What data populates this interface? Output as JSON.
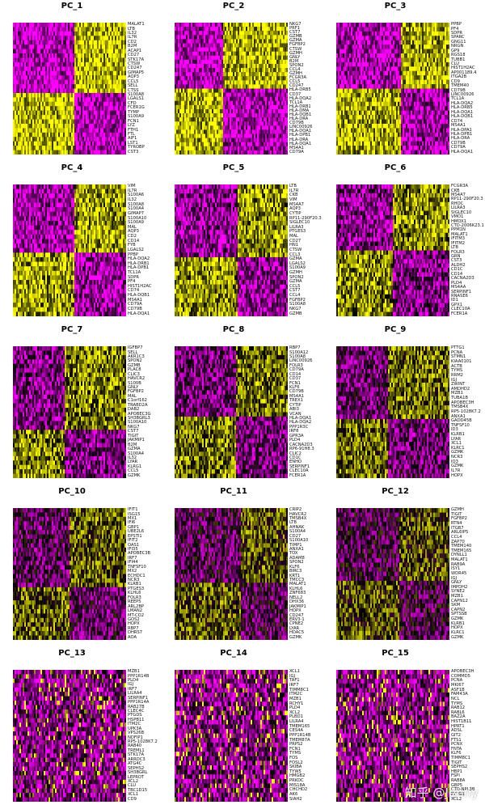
{
  "chart_data": [
    {
      "type": "heatmap",
      "title": "PC_1",
      "top": [
        "MALAT1",
        "LTB",
        "IL32",
        "IL7R",
        "CD2",
        "B2M",
        "ACAP1",
        "CD27",
        "STK17A",
        "CTSW",
        "CD247",
        "GIMAP5",
        "AQP3",
        "CCL5",
        "SELL",
        "CTSS"
      ],
      "bottom": [
        "S100A8",
        "LGALS1",
        "CFD",
        "FCER1G",
        "TYMP",
        "S100A9",
        "FCN1",
        "LYZ",
        "FTH1",
        "FTL",
        "AIF1",
        "LST1",
        "TYROBP",
        "CST3"
      ]
    },
    {
      "type": "heatmap",
      "title": "PC_2",
      "top": [
        "NKG7",
        "PRF1",
        "CST7",
        "GZMB",
        "GZMA",
        "FGFBP2",
        "CTSW",
        "GZMH",
        "GNLY",
        "B2M",
        "SPON2",
        "CCL4",
        "GZMH",
        "FCGR3A",
        "CCL5",
        "CD247"
      ],
      "bottom": [
        "HLA-DRB5",
        "CD37",
        "HLA-DQA2",
        "TCL1A",
        "HLA-DRB1",
        "HLA-DMA",
        "HLA-DQB1",
        "HLA-DRA",
        "CD79B",
        "LINC00926",
        "HLA-DQA1",
        "HLA-DPB1",
        "HLA-DRA",
        "HLA-DQA1",
        "MS4A1",
        "CD79A"
      ]
    },
    {
      "type": "heatmap",
      "title": "PC_3",
      "top": [
        "PPBP",
        "PF4",
        "SDPR",
        "SPARC",
        "GNG11",
        "NRGN",
        "GP9",
        "RGS18",
        "TUBB1",
        "CLU",
        "HIST1H2AC",
        "AP001189.4",
        "ITGA2B",
        "CD9",
        "TMEM40"
      ],
      "bottom": [
        "CD79B",
        "LINC00926",
        "TCL1A",
        "HLA-DQA2",
        "HLA-DRB5",
        "HLA-DQA1",
        "HLA-DQB1",
        "CD74",
        "MS4A1",
        "HLA-DPA1",
        "HLA-DPB1",
        "HLA-DRA",
        "CD79B",
        "CD79A",
        "HLA-DQA1"
      ]
    },
    {
      "type": "heatmap",
      "title": "PC_4",
      "top": [
        "VIM",
        "IL7R",
        "S100A6",
        "IL32",
        "S100A8",
        "S100A4",
        "GIMAP7",
        "S100A10",
        "S100A9",
        "MAL",
        "AQP3",
        "CD2",
        "CD14",
        "FYB",
        "LGALS2"
      ],
      "bottom": [
        "PPBP",
        "HLA-DQA2",
        "HLA-DRB1",
        "HLA-DPB1",
        "TCL1A",
        "SDPR",
        "PF4",
        "HIST1H2AC",
        "CD74",
        "HLA-DQB1",
        "MS4A1",
        "CD79A",
        "CD79B",
        "HLA-DQA1"
      ]
    },
    {
      "type": "heatmap",
      "title": "PC_5",
      "top": [
        "LTB",
        "IL7R",
        "CKB",
        "VIM",
        "MS4A7",
        "AQP3",
        "CYTIP",
        "RP11-290F20.3",
        "SIGLEC10",
        "LILRA3",
        "PTGES3",
        "MAL",
        "CD27",
        "HN1",
        "CTSW",
        "CCL3"
      ],
      "bottom": [
        "GZMA",
        "LGALS2",
        "S100A9",
        "GZMH",
        "SPON2",
        "GZMA",
        "CCL5",
        "CST7",
        "CCL4",
        "FGFBP2",
        "S100A8",
        "NKG7",
        "GZMB"
      ]
    },
    {
      "type": "heatmap",
      "title": "PC_6",
      "top": [
        "FCGR3A",
        "CKB",
        "MS4A7",
        "RP11-290F20.3",
        "RHOC",
        "LILRA3",
        "SIGLEC10",
        "VMO1",
        "HMOX1",
        "CTD-2006K23.1",
        "PPM1N",
        "MALAT1",
        "IFITM3",
        "IFITM2",
        "LTB"
      ],
      "bottom": [
        "FOLR3",
        "GRN",
        "CST3",
        "ALDH2",
        "CD1C",
        "CD14",
        "CACNA2D3",
        "PLD4",
        "MS4AA",
        "SERPINF1",
        "RNASE6",
        "ID1",
        "GPX1",
        "CLEC10A",
        "FCER1A"
      ]
    },
    {
      "type": "heatmap",
      "title": "PC_7",
      "top": [
        "IGFBP7",
        "SELL",
        "AKR1C3",
        "SPON2",
        "GZMB",
        "PLAC8",
        "CLIC3",
        "HAVCR2",
        "S100B",
        "GNLY",
        "FGFBP2",
        "MAL",
        "C1orf162",
        "TRABD2A",
        "DAB2",
        "APOBEC3G",
        "SH3BGRL3",
        "S100A10",
        "NKG7"
      ],
      "bottom": [
        "CST7",
        "TIGIT",
        "JAKMIP1",
        "B2M",
        "GZMA",
        "S100A4",
        "IL32",
        "LYAR",
        "KLRG1",
        "CCL5",
        "GZMK"
      ]
    },
    {
      "type": "heatmap",
      "title": "PC_8",
      "top": [
        "RBP7",
        "S100A12",
        "S100A8",
        "LINC00926",
        "FOLR3",
        "CD79A",
        "CD14",
        "CD37",
        "FCN1",
        "KLF6",
        "CD79B",
        "MS4A1",
        "TREX1",
        "CYTIP",
        "ABI3",
        "VCAN"
      ],
      "bottom": [
        "HLA-DQA1",
        "HLA-DQA2",
        "PPP1R3C",
        "IRF8",
        "GPR3A",
        "PLD4",
        "CACNA2D3",
        "RP6-91H8.3",
        "CLIC2",
        "CD1C",
        "ENHO",
        "SERPINF1",
        "CLEC10A",
        "FCER1A"
      ]
    },
    {
      "type": "heatmap",
      "title": "PC_9",
      "top": [
        "PTTG1",
        "PCNA",
        "STMN1",
        "KIAA0101",
        "ACTB",
        "TYMS",
        "RRM2",
        "IGJ",
        "ZWINT",
        "AMDHD2",
        "MZB1",
        "TUBA1B",
        "APOBEC3H",
        "TMSB4X",
        "RP5-1028K7.2",
        "ANXA1"
      ],
      "bottom": [
        "GADD45B",
        "TNFSF10",
        "ID3",
        "KLRB1",
        "LYAR",
        "XCL1",
        "KLRC1",
        "GZMK",
        "NCR3",
        "IQ3",
        "GZMK",
        "IL7R",
        "HOPX"
      ]
    },
    {
      "type": "heatmap",
      "title": "PC_10",
      "top": [
        "IFIT1",
        "ISG15",
        "MX1",
        "IFI6",
        "GBP1",
        "UBE2L6",
        "EPSTI1",
        "IFIT2",
        "OAS1",
        "IFI35",
        "APOBEC3B",
        "IRF7",
        "IFI44",
        "TNFSF10",
        "MX2",
        "ECHDC1",
        "NCR3",
        "KLRB1"
      ],
      "bottom": [
        "PTGES3",
        "KLHL6",
        "FOLR3",
        "REEP5",
        "ARL2BP",
        "LMAN2",
        "MT-CO2",
        "GOS2",
        "HOPX",
        "RBP7",
        "DHRS7",
        "AOA"
      ]
    },
    {
      "type": "heatmap",
      "title": "PC_11",
      "top": [
        "CRIP2",
        "HAVCR2",
        "TMSB4X",
        "LTB",
        "AHNAK",
        "S100A4",
        "CD27",
        "S100A10",
        "TIMP1",
        "ANXA1",
        "TOX",
        "ADAM8",
        "SPON2",
        "KLF6",
        "BIRC3",
        "KRT1",
        "TMCC3"
      ],
      "bottom": [
        "MALAT1",
        "KLHL6",
        "ZNF683",
        "NELL2",
        "DHX36",
        "JAKMIP1",
        "HOPX",
        "CD247",
        "ERV3-1",
        "CPNE2",
        "LYAR",
        "HDAC5",
        "GZMK"
      ]
    },
    {
      "type": "heatmap",
      "title": "PC_12",
      "top": [
        "GZMH",
        "TIGIT",
        "FGFBP2",
        "RTN4",
        "ITGB7",
        "ARL6IP5",
        "CCL4",
        "ZAP70",
        "TMEM140",
        "TMEM165",
        "DYNLL1",
        "MALAT1",
        "RAB9A",
        "ISY1",
        "WDR45",
        "IGJ"
      ],
      "bottom": [
        "GNLY",
        "IMPDH2",
        "SYNE2",
        "MZB1",
        "CAPN12",
        "SKM",
        "CAPN2",
        "SPTSSB",
        "GZMK",
        "KLRB1",
        "HOPX",
        "KLRC1",
        "GZMK"
      ]
    },
    {
      "type": "heatmap",
      "title": "PC_13",
      "top": [
        "MZB1",
        "PPP1R14B",
        "PLD4",
        "IGJ",
        "IRF7",
        "LILRA4",
        "SERPINF1",
        "PPP1R14A",
        "RAB27B",
        "CLEC4C",
        "PTGDS",
        "HSPB11",
        "ITM2C",
        "UPK3A",
        "VPS26B",
        "NDFIP1",
        "RP5-1028K7.2",
        "RAB40"
      ],
      "bottom": [
        "TREML1",
        "STK17A",
        "ARRDC3",
        "ATG4C",
        "SEPHS2",
        "SH3BGRL",
        "LEPROT",
        "XCL2",
        "CLU",
        "TBC1D15",
        "XCL1",
        "CD9"
      ]
    },
    {
      "type": "heatmap",
      "title": "PC_14",
      "top": [
        "XCL1",
        "IGJ",
        "TAF1",
        "IRF7",
        "TIMM8C1",
        "ITM2C",
        "MZB1",
        "RCHY1",
        "PLD4",
        "XCL2",
        "PLBD1",
        "LILRA4",
        "TMEM165",
        "CES4A",
        "PPP1R14B",
        "TMEM87A",
        "PRPS2",
        "FCN1"
      ],
      "bottom": [
        "TYMS",
        "FOS",
        "FOSL2",
        "SKIBA",
        "TYW5",
        "HMGB2",
        "PRKDC",
        "MIS18A",
        "CHCHD2",
        "AK6",
        "SIAH2"
      ]
    },
    {
      "type": "heatmap",
      "title": "PC_15",
      "top": [
        "APOBEC3H",
        "COMMD5",
        "PCNA",
        "MKI67",
        "ASF1B",
        "FAM43A",
        "NCL",
        "TYMS",
        "RAB12",
        "RABL6",
        "BAZ2A",
        "HIST1B11",
        "HPRT1",
        "ADSL",
        "GIT2",
        "FTS1"
      ],
      "bottom": [
        "PCNX",
        "FNTA",
        "KLF6",
        "TIMM8C1",
        "TIGIT",
        "SEPHS2",
        "HBP1",
        "FSPI",
        "RAB8A",
        "GBP5",
        "CTD-NPL3B",
        "PTTG1",
        "XCL2"
      ]
    }
  ],
  "colors": {
    "low": "#ff00ff",
    "mid": "#000000",
    "high": "#ffff00"
  },
  "watermark": "知乎 @Jenny"
}
